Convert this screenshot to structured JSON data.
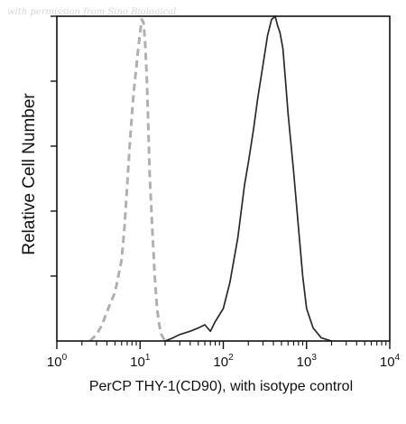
{
  "watermark": "with permission from Sino Biological",
  "chart_data": {
    "type": "line",
    "title": "",
    "xlabel": "PerCP THY-1(CD90), with isotype control",
    "ylabel": "Relative Cell Number",
    "x_scale": "log",
    "xlim": [
      1,
      10000
    ],
    "ylim": [
      0,
      100
    ],
    "x_ticks": [
      {
        "base": "10",
        "exp": "0"
      },
      {
        "base": "10",
        "exp": "1"
      },
      {
        "base": "10",
        "exp": "2"
      },
      {
        "base": "10",
        "exp": "3"
      },
      {
        "base": "10",
        "exp": "4"
      }
    ],
    "grid": false,
    "series": [
      {
        "style": "dashed",
        "color": "#b0b0b0",
        "x": [
          2.5,
          3,
          3.5,
          4,
          5,
          6,
          6.5,
          7,
          7.5,
          8,
          8.5,
          9,
          9.5,
          10,
          10.5,
          11,
          11.5,
          12,
          12.5,
          13,
          14,
          15,
          16,
          17,
          18,
          20
        ],
        "y": [
          0,
          2,
          5,
          9,
          15,
          25,
          35,
          48,
          60,
          70,
          78,
          84,
          90,
          95,
          99,
          98,
          92,
          82,
          68,
          52,
          35,
          20,
          10,
          5,
          2,
          0
        ]
      },
      {
        "style": "solid",
        "color": "#2a2a2a",
        "x": [
          20,
          25,
          30,
          40,
          50,
          60,
          70,
          80,
          100,
          120,
          150,
          180,
          200,
          230,
          260,
          300,
          340,
          380,
          420,
          450,
          480,
          520,
          560,
          600,
          700,
          800,
          900,
          1000,
          1200,
          1500,
          2000
        ],
        "y": [
          0,
          1,
          2,
          3,
          4,
          5,
          3,
          6,
          10,
          18,
          32,
          48,
          55,
          65,
          75,
          85,
          94,
          99,
          100,
          97,
          95,
          90,
          80,
          70,
          52,
          35,
          20,
          10,
          4,
          1,
          0
        ]
      }
    ]
  }
}
